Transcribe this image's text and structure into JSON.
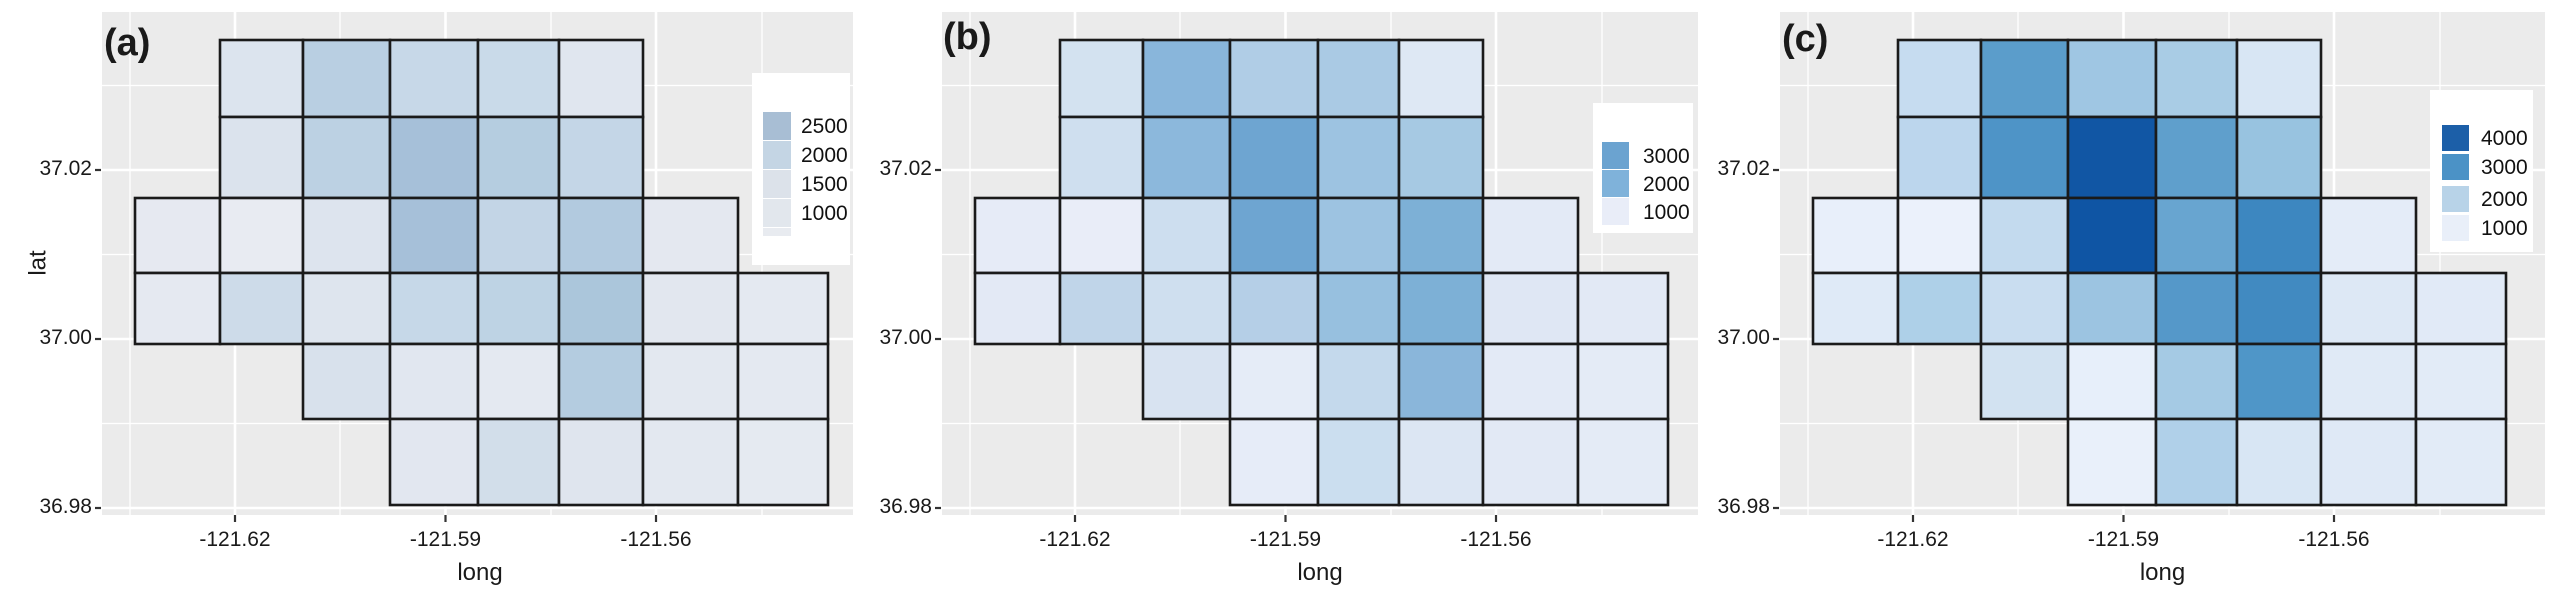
{
  "figure": {
    "background": "#ffffff",
    "panel_bg": "#ebebeb",
    "grid_major_color": "#ffffff",
    "grid_minor_color": "#f5f5f5",
    "cell_border_color": "#1a1a1a",
    "tick_mark_color": "#333333",
    "text_color": "#1a1a1a"
  },
  "axes": {
    "x_title": "long",
    "y_title": "lat",
    "x_tick_labels": [
      "-121.62",
      "-121.59",
      "-121.56"
    ],
    "y_tick_labels": [
      "37.02",
      "37.00",
      "36.98"
    ]
  },
  "panels": [
    {
      "id": "a",
      "label": "(a)",
      "legend": {
        "values": [
          "2500",
          "2000",
          "1500",
          "1000"
        ],
        "colors": [
          "#a8bed4",
          "#c4d5e4",
          "#dce2ea",
          "#e2e7ed"
        ],
        "stub_color": "#e8ebf0"
      },
      "rows": [
        {
          "cells": [
            {
              "c": 1,
              "color": "#dce4ee"
            },
            {
              "c": 2,
              "color": "#b9cfe2"
            },
            {
              "c": 3,
              "color": "#c7d8e8"
            },
            {
              "c": 4,
              "color": "#c9dae9"
            },
            {
              "c": 5,
              "color": "#e0e6ef"
            }
          ]
        },
        {
          "cells": [
            {
              "c": 1,
              "color": "#dbe3ed"
            },
            {
              "c": 2,
              "color": "#bcd1e3"
            },
            {
              "c": 3,
              "color": "#a6c0d9"
            },
            {
              "c": 4,
              "color": "#b5cde0"
            },
            {
              "c": 5,
              "color": "#c4d6e7"
            }
          ]
        },
        {
          "cells": [
            {
              "c": 0,
              "color": "#e6e9f1"
            },
            {
              "c": 1,
              "color": "#e8ebf2"
            },
            {
              "c": 2,
              "color": "#dde4ee"
            },
            {
              "c": 3,
              "color": "#a6c0d9"
            },
            {
              "c": 4,
              "color": "#c3d5e6"
            },
            {
              "c": 5,
              "color": "#b2cadf"
            },
            {
              "c": 6,
              "color": "#e4e8f0"
            }
          ]
        },
        {
          "cells": [
            {
              "c": 0,
              "color": "#e5e9f1"
            },
            {
              "c": 1,
              "color": "#cddbe9"
            },
            {
              "c": 2,
              "color": "#dee5ee"
            },
            {
              "c": 3,
              "color": "#c6d8e8"
            },
            {
              "c": 4,
              "color": "#bed3e4"
            },
            {
              "c": 5,
              "color": "#abc6db"
            },
            {
              "c": 6,
              "color": "#e2e7ef"
            },
            {
              "c": 7,
              "color": "#e4e9f1"
            }
          ]
        },
        {
          "cells": [
            {
              "c": 2,
              "color": "#d8e1ec"
            },
            {
              "c": 3,
              "color": "#e1e7f0"
            },
            {
              "c": 4,
              "color": "#e4e9f1"
            },
            {
              "c": 5,
              "color": "#b4cce0"
            },
            {
              "c": 6,
              "color": "#e3e8f0"
            },
            {
              "c": 7,
              "color": "#e4e9f1"
            }
          ]
        },
        {
          "cells": [
            {
              "c": 3,
              "color": "#e2e7f0"
            },
            {
              "c": 4,
              "color": "#d2deea"
            },
            {
              "c": 5,
              "color": "#dfe5ee"
            },
            {
              "c": 6,
              "color": "#e3e8f0"
            },
            {
              "c": 7,
              "color": "#e5eaf1"
            }
          ]
        }
      ]
    },
    {
      "id": "b",
      "label": "(b)",
      "legend": {
        "values": [
          "3000",
          "2000",
          "1000"
        ],
        "colors": [
          "#6ba3d0",
          "#7fb2da",
          "#e9edf8"
        ]
      },
      "rows": [
        {
          "cells": [
            {
              "c": 1,
              "color": "#d3e2f0"
            },
            {
              "c": 2,
              "color": "#89b6db"
            },
            {
              "c": 3,
              "color": "#b0cde6"
            },
            {
              "c": 4,
              "color": "#aacae4"
            },
            {
              "c": 5,
              "color": "#dee8f4"
            }
          ]
        },
        {
          "cells": [
            {
              "c": 1,
              "color": "#cfdfef"
            },
            {
              "c": 2,
              "color": "#8cb8dc"
            },
            {
              "c": 3,
              "color": "#6ea5d1"
            },
            {
              "c": 4,
              "color": "#9dc3e1"
            },
            {
              "c": 5,
              "color": "#a6c9e3"
            }
          ]
        },
        {
          "cells": [
            {
              "c": 0,
              "color": "#e6ebf7"
            },
            {
              "c": 1,
              "color": "#e9edf8"
            },
            {
              "c": 2,
              "color": "#cddeef"
            },
            {
              "c": 3,
              "color": "#6ea5d1"
            },
            {
              "c": 4,
              "color": "#9dc3e1"
            },
            {
              "c": 5,
              "color": "#7db0d6"
            },
            {
              "c": 6,
              "color": "#e3eaf6"
            }
          ]
        },
        {
          "cells": [
            {
              "c": 0,
              "color": "#e3e9f5"
            },
            {
              "c": 1,
              "color": "#c0d5e9"
            },
            {
              "c": 2,
              "color": "#cfdfef"
            },
            {
              "c": 3,
              "color": "#b5cfe7"
            },
            {
              "c": 4,
              "color": "#97c0df"
            },
            {
              "c": 5,
              "color": "#7db0d6"
            },
            {
              "c": 6,
              "color": "#dfe7f4"
            },
            {
              "c": 7,
              "color": "#e2e9f5"
            }
          ]
        },
        {
          "cells": [
            {
              "c": 2,
              "color": "#d8e3f1"
            },
            {
              "c": 3,
              "color": "#e5ecf7"
            },
            {
              "c": 4,
              "color": "#c4d9ec"
            },
            {
              "c": 5,
              "color": "#8ab6da"
            },
            {
              "c": 6,
              "color": "#e3eaf6"
            },
            {
              "c": 7,
              "color": "#e4ebf6"
            }
          ]
        },
        {
          "cells": [
            {
              "c": 3,
              "color": "#e6ecf8"
            },
            {
              "c": 4,
              "color": "#cbdeef"
            },
            {
              "c": 5,
              "color": "#dce6f3"
            },
            {
              "c": 6,
              "color": "#e2e9f5"
            },
            {
              "c": 7,
              "color": "#e4ebf6"
            }
          ]
        }
      ]
    },
    {
      "id": "c",
      "label": "(c)",
      "legend": {
        "values": [
          "4000",
          "3000",
          "2000",
          "1000"
        ],
        "colors": [
          "#1c5fa8",
          "#4b92c6",
          "#b8d3e8",
          "#e9eff9"
        ]
      },
      "rows": [
        {
          "cells": [
            {
              "c": 1,
              "color": "#c6dcf0"
            },
            {
              "c": 2,
              "color": "#5b9dcb"
            },
            {
              "c": 3,
              "color": "#9fc6e3"
            },
            {
              "c": 4,
              "color": "#a9cce5"
            },
            {
              "c": 5,
              "color": "#d8e6f4"
            }
          ]
        },
        {
          "cells": [
            {
              "c": 1,
              "color": "#bcd6ed"
            },
            {
              "c": 2,
              "color": "#4e94c7"
            },
            {
              "c": 3,
              "color": "#1156a4"
            },
            {
              "c": 4,
              "color": "#5f9fcc"
            },
            {
              "c": 5,
              "color": "#98c3e0"
            }
          ]
        },
        {
          "cells": [
            {
              "c": 0,
              "color": "#e8effa"
            },
            {
              "c": 1,
              "color": "#ebf1fb"
            },
            {
              "c": 2,
              "color": "#c3daee"
            },
            {
              "c": 3,
              "color": "#0f55a4"
            },
            {
              "c": 4,
              "color": "#68a5d0"
            },
            {
              "c": 5,
              "color": "#3d87c0"
            },
            {
              "c": 6,
              "color": "#e4ecf8"
            }
          ]
        },
        {
          "cells": [
            {
              "c": 0,
              "color": "#dfeaf7"
            },
            {
              "c": 1,
              "color": "#aed0e8"
            },
            {
              "c": 2,
              "color": "#c9ddf0"
            },
            {
              "c": 3,
              "color": "#9cc4e1"
            },
            {
              "c": 4,
              "color": "#5598c9"
            },
            {
              "c": 5,
              "color": "#418ac1"
            },
            {
              "c": 6,
              "color": "#dde8f5"
            },
            {
              "c": 7,
              "color": "#e1eaf7"
            }
          ]
        },
        {
          "cells": [
            {
              "c": 2,
              "color": "#d2e2f1"
            },
            {
              "c": 3,
              "color": "#e7effa"
            },
            {
              "c": 4,
              "color": "#a5cae4"
            },
            {
              "c": 5,
              "color": "#4f96c8"
            },
            {
              "c": 6,
              "color": "#e0eaf6"
            },
            {
              "c": 7,
              "color": "#e2ebf7"
            }
          ]
        },
        {
          "cells": [
            {
              "c": 3,
              "color": "#e9f0fa"
            },
            {
              "c": 4,
              "color": "#b0d0e9"
            },
            {
              "c": 5,
              "color": "#d8e6f4"
            },
            {
              "c": 6,
              "color": "#dfe9f6"
            },
            {
              "c": 7,
              "color": "#e2ebf7"
            }
          ]
        }
      ]
    }
  ],
  "chart_data": [
    {
      "type": "heatmap",
      "panel": "(a)",
      "xlabel": "long",
      "ylabel": "lat",
      "x_ticks": [
        -121.62,
        -121.59,
        -121.56
      ],
      "y_ticks": [
        37.02,
        37.0,
        36.98
      ],
      "legend_breaks": [
        2500,
        2000,
        1500,
        1000
      ],
      "legend_position": "right-inside",
      "grid": "irregular block-group rectangles, 6 rows x 8 columns, staircase footprint",
      "estimated_values_by_row": [
        [
          null,
          1300,
          2200,
          1900,
          1900,
          1100,
          null,
          null
        ],
        [
          null,
          1350,
          2100,
          2500,
          2100,
          1800,
          null,
          null
        ],
        [
          900,
          850,
          1300,
          2500,
          1850,
          2200,
          1000,
          null
        ],
        [
          950,
          1700,
          1250,
          1800,
          1950,
          2300,
          1100,
          1050
        ],
        [
          null,
          null,
          1400,
          1150,
          1000,
          2150,
          1050,
          1000
        ],
        [
          null,
          null,
          null,
          1100,
          1550,
          1250,
          1050,
          950
        ]
      ]
    },
    {
      "type": "heatmap",
      "panel": "(b)",
      "xlabel": "long",
      "ylabel": "lat",
      "x_ticks": [
        -121.62,
        -121.59,
        -121.56
      ],
      "y_ticks": [
        37.02,
        37.0,
        36.98
      ],
      "legend_breaks": [
        3000,
        2000,
        1000
      ],
      "legend_position": "right-inside",
      "grid": "same footprint as panel (a)",
      "estimated_values_by_row": [
        [
          null,
          1400,
          2600,
          1900,
          2000,
          1150,
          null,
          null
        ],
        [
          null,
          1500,
          2550,
          3000,
          2250,
          2150,
          null,
          null
        ],
        [
          950,
          900,
          1500,
          3000,
          2250,
          2700,
          950,
          null
        ],
        [
          1000,
          1900,
          1500,
          1900,
          2300,
          2700,
          1100,
          1000
        ],
        [
          null,
          null,
          1300,
          900,
          1650,
          2600,
          950,
          900
        ],
        [
          null,
          null,
          null,
          850,
          1550,
          1200,
          1000,
          900
        ]
      ]
    },
    {
      "type": "heatmap",
      "panel": "(c)",
      "xlabel": "long",
      "ylabel": "lat",
      "x_ticks": [
        -121.62,
        -121.59,
        -121.56
      ],
      "y_ticks": [
        37.02,
        37.0,
        36.98
      ],
      "legend_breaks": [
        4000,
        3000,
        2000,
        1000
      ],
      "legend_position": "right-inside",
      "grid": "same footprint as panel (a)",
      "estimated_values_by_row": [
        [
          null,
          1800,
          3200,
          2300,
          2200,
          1300,
          null,
          null
        ],
        [
          null,
          1900,
          3400,
          4300,
          3200,
          2400,
          null,
          null
        ],
        [
          1000,
          950,
          1800,
          4300,
          3100,
          3600,
          1000,
          null
        ],
        [
          1050,
          2300,
          1800,
          2400,
          3300,
          3500,
          1200,
          1100
        ],
        [
          null,
          null,
          1500,
          900,
          2200,
          3300,
          1100,
          1000
        ],
        [
          null,
          null,
          null,
          850,
          2100,
          1500,
          1200,
          1000
        ]
      ]
    }
  ]
}
